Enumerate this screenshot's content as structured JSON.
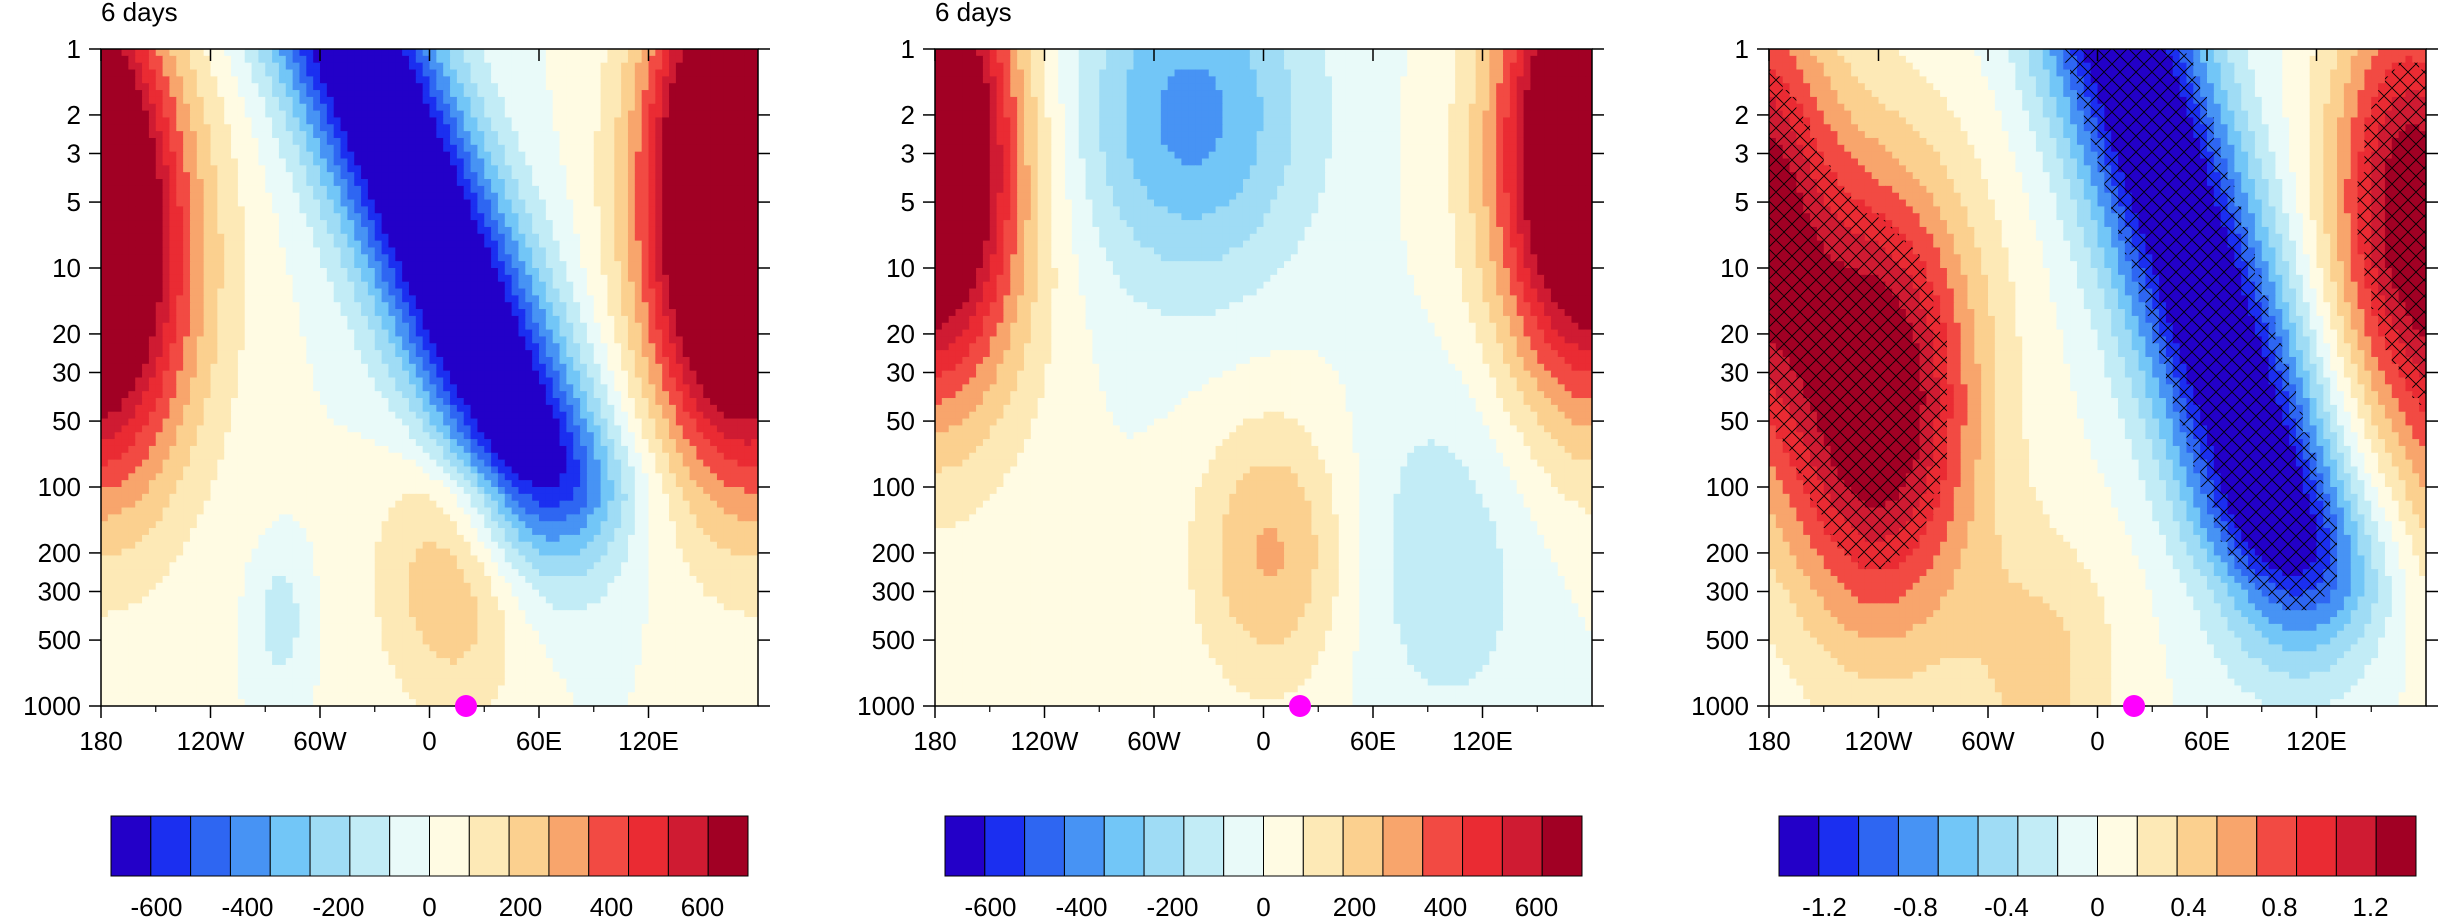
{
  "colors": {
    "palette": [
      "#2300c8",
      "#1b2ff0",
      "#2e66f2",
      "#4793f4",
      "#72c6f7",
      "#9fdcf5",
      "#c2ecf6",
      "#e9faf9",
      "#fffbe3",
      "#fde9b6",
      "#fbd08f",
      "#f8a56c",
      "#f24a43",
      "#ea2b33",
      "#cf1b32",
      "#a10024"
    ],
    "marker": "#ff00ff",
    "hatch": "#000000",
    "axis": "#000000",
    "contour_line": "#555555"
  },
  "chart_data": [
    {
      "type": "heatmap",
      "title": "6 days",
      "xlabel": "",
      "ylabel": "",
      "x_range": [
        -180,
        180
      ],
      "y_range": [
        1,
        1000
      ],
      "y_scale": "log",
      "y_reversed": true,
      "x_ticks": [
        -180,
        -120,
        -60,
        0,
        60,
        120
      ],
      "x_tick_labels": [
        "180",
        "120W",
        "60W",
        "0",
        "60E",
        "120E"
      ],
      "y_ticks": [
        1,
        2,
        3,
        5,
        10,
        20,
        30,
        50,
        100,
        200,
        300,
        500,
        1000
      ],
      "y_tick_labels": [
        "1",
        "2",
        "3",
        "5",
        "10",
        "20",
        "30",
        "50",
        "100",
        "200",
        "300",
        "500",
        "1000"
      ],
      "marker": {
        "x": 20,
        "y": 1000
      },
      "contour_lines": true,
      "hatched": false,
      "colorbar": {
        "levels": [
          -700,
          700
        ],
        "tick_values": [
          -600,
          -400,
          -200,
          0,
          200,
          400,
          600
        ],
        "tick_labels": [
          "-600",
          "-400",
          "-200",
          "0",
          "200",
          "400",
          "600"
        ]
      },
      "field": {
        "features": [
          {
            "type": "west_positive",
            "lon": -180,
            "p": 10,
            "value": 750
          },
          {
            "type": "tilted_negative",
            "lon_top": -40,
            "lon_bottom": 45,
            "p_top": 1,
            "p_bottom": 50,
            "value": -850
          },
          {
            "type": "east_positive",
            "lon": 160,
            "p": 3,
            "value": 700
          },
          {
            "type": "low_level_positive",
            "lon": 15,
            "p": 250,
            "value": 280
          },
          {
            "type": "low_level_negative",
            "lon": -82,
            "p": 400,
            "value": -150
          }
        ]
      }
    },
    {
      "type": "heatmap",
      "title": "6 days",
      "xlabel": "",
      "ylabel": "",
      "x_range": [
        -180,
        180
      ],
      "y_range": [
        1,
        1000
      ],
      "y_scale": "log",
      "y_reversed": true,
      "x_ticks": [
        -180,
        -120,
        -60,
        0,
        60,
        120
      ],
      "x_tick_labels": [
        "180",
        "120W",
        "60W",
        "0",
        "60E",
        "120E"
      ],
      "y_ticks": [
        1,
        2,
        3,
        5,
        10,
        20,
        30,
        50,
        100,
        200,
        300,
        500,
        1000
      ],
      "y_tick_labels": [
        "1",
        "2",
        "3",
        "5",
        "10",
        "20",
        "30",
        "50",
        "100",
        "200",
        "300",
        "500",
        "1000"
      ],
      "marker": {
        "x": 20,
        "y": 1000
      },
      "contour_lines": true,
      "hatched": false,
      "colorbar": {
        "levels": [
          -700,
          700
        ],
        "tick_values": [
          -600,
          -400,
          -200,
          0,
          200,
          400,
          600
        ],
        "tick_labels": [
          "-600",
          "-400",
          "-200",
          "0",
          "200",
          "400",
          "600"
        ]
      },
      "field": {
        "features": [
          {
            "type": "west_positive",
            "lon": -180,
            "p": 5,
            "value": 520
          },
          {
            "type": "upper_negative",
            "lon": -40,
            "p": 2,
            "value": -380
          },
          {
            "type": "low_level_positive",
            "lon": 5,
            "p": 200,
            "value": 280
          },
          {
            "type": "east_positive",
            "lon": 175,
            "p": 2,
            "value": 600
          },
          {
            "type": "mid_negative",
            "lon": 100,
            "p": 200,
            "value": -150
          }
        ]
      }
    },
    {
      "type": "heatmap",
      "title": "",
      "xlabel": "",
      "ylabel": "",
      "x_range": [
        -180,
        180
      ],
      "y_range": [
        1,
        1000
      ],
      "y_scale": "log",
      "y_reversed": true,
      "x_ticks": [
        -180,
        -120,
        -60,
        0,
        60,
        120
      ],
      "x_tick_labels": [
        "180",
        "120W",
        "60W",
        "0",
        "60E",
        "120E"
      ],
      "y_ticks": [
        1,
        2,
        3,
        5,
        10,
        20,
        30,
        50,
        100,
        200,
        300,
        500,
        1000
      ],
      "y_tick_labels": [
        "1",
        "2",
        "3",
        "5",
        "10",
        "20",
        "30",
        "50",
        "100",
        "200",
        "300",
        "500",
        "1000"
      ],
      "marker": {
        "x": 20,
        "y": 1000
      },
      "contour_lines": false,
      "hatched": true,
      "colorbar": {
        "levels": [
          -1.4,
          1.4
        ],
        "tick_values": [
          -1.2,
          -0.8,
          -0.4,
          0,
          0.4,
          0.8,
          1.2
        ],
        "tick_labels": [
          "-1.2",
          "-0.8",
          "-0.4",
          "0",
          "0.4",
          "0.8",
          "1.2"
        ]
      },
      "field": {
        "features": [
          {
            "type": "west_positive",
            "lon": -120,
            "p": 40,
            "value": 1.5
          },
          {
            "type": "tilted_negative",
            "lon_top": 15,
            "lon_bottom": 95,
            "p_top": 1,
            "p_bottom": 120,
            "value": -1.6
          },
          {
            "type": "east_positive",
            "lon": 170,
            "p": 5,
            "value": 1.3
          },
          {
            "type": "low_level_positive",
            "lon": -30,
            "p": 700,
            "value": 0.4
          }
        ],
        "significance_threshold": 0.9
      }
    }
  ]
}
